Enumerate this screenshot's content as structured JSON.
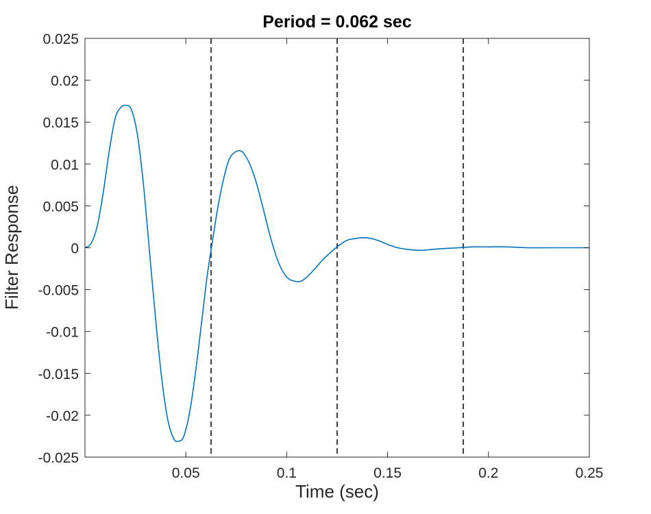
{
  "chart_data": {
    "type": "line",
    "title": "Period = 0.062 sec",
    "xlabel": "Time (sec)",
    "ylabel": "Filter Response",
    "xlim": [
      0,
      0.25
    ],
    "ylim": [
      -0.025,
      0.025
    ],
    "xticks": [
      0.05,
      0.1,
      0.15,
      0.2,
      0.25
    ],
    "xtick_labels": [
      "0.05",
      "0.1",
      "0.15",
      "0.2",
      "0.25"
    ],
    "yticks": [
      0.025,
      0.02,
      0.015,
      0.01,
      0.005,
      0,
      -0.005,
      -0.01,
      -0.015,
      -0.02,
      -0.025
    ],
    "ytick_labels": [
      "0.025",
      "0.02",
      "0.015",
      "0.01",
      "0.005",
      "0",
      "-0.005",
      "-0.01",
      "-0.015",
      "-0.02",
      "-0.025"
    ],
    "grid": false,
    "series": [
      {
        "color": "#0072BD",
        "x": [
          0,
          0.003,
          0.006,
          0.009,
          0.012,
          0.015,
          0.018,
          0.0205,
          0.023,
          0.026,
          0.029,
          0.032,
          0.035,
          0.038,
          0.041,
          0.044,
          0.0465,
          0.049,
          0.052,
          0.055,
          0.058,
          0.0605,
          0.063,
          0.066,
          0.069,
          0.072,
          0.0765,
          0.08,
          0.084,
          0.088,
          0.092,
          0.096,
          0.1,
          0.104,
          0.107,
          0.11,
          0.114,
          0.118,
          0.122,
          0.126,
          0.13,
          0.134,
          0.138,
          0.142,
          0.146,
          0.15,
          0.155,
          0.16,
          0.165,
          0.168,
          0.172,
          0.178,
          0.185,
          0.192,
          0.2,
          0.21,
          0.22,
          0.23,
          0.24,
          0.25
        ],
        "y": [
          0,
          0.0005,
          0.0025,
          0.0065,
          0.0115,
          0.0155,
          0.0168,
          0.017,
          0.0165,
          0.0135,
          0.0075,
          -0.0005,
          -0.0085,
          -0.0155,
          -0.0205,
          -0.0228,
          -0.0231,
          -0.0225,
          -0.0195,
          -0.0145,
          -0.0085,
          -0.0035,
          0.0005,
          0.005,
          0.0085,
          0.0108,
          0.0116,
          0.0108,
          0.0085,
          0.005,
          0.0012,
          -0.0018,
          -0.0035,
          -0.004,
          -0.004,
          -0.0035,
          -0.0025,
          -0.0014,
          -0.0005,
          0.0003,
          0.0009,
          0.0011,
          0.0012,
          0.0011,
          0.0008,
          0.0004,
          0,
          -0.0002,
          -0.0003,
          -0.0003,
          -0.0002,
          -0.0001,
          0,
          0.0001,
          0.0001,
          0.0001,
          0,
          0,
          0,
          0
        ]
      }
    ],
    "vlines": [
      0.0625,
      0.125,
      0.1875
    ],
    "vline_style": "dashed",
    "vline_color": "#000000"
  }
}
